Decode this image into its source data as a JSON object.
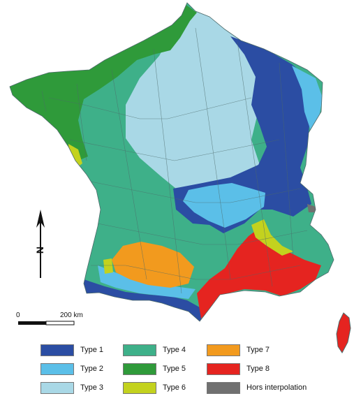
{
  "colors": {
    "type1": "#2b4da3",
    "type2": "#5bbfe8",
    "type3": "#a9d8e6",
    "type4": "#3eb089",
    "type5": "#2f9a3a",
    "type6": "#c3d21e",
    "type7": "#f29a1e",
    "type8": "#e52420",
    "hors": "#707070",
    "border": "#4d6a6a"
  },
  "north_label": "N",
  "scale": {
    "start_label": "0",
    "end_label": "200 km"
  },
  "legend": [
    {
      "label": "Type 1",
      "color_key": "type1"
    },
    {
      "label": "Type 2",
      "color_key": "type2"
    },
    {
      "label": "Type 3",
      "color_key": "type3"
    },
    {
      "label": "Type 4",
      "color_key": "type4"
    },
    {
      "label": "Type 5",
      "color_key": "type5"
    },
    {
      "label": "Type 6",
      "color_key": "type6"
    },
    {
      "label": "Type 7",
      "color_key": "type7"
    },
    {
      "label": "Type 8",
      "color_key": "type8"
    },
    {
      "label": "Hors interpolation",
      "color_key": "hors"
    }
  ]
}
